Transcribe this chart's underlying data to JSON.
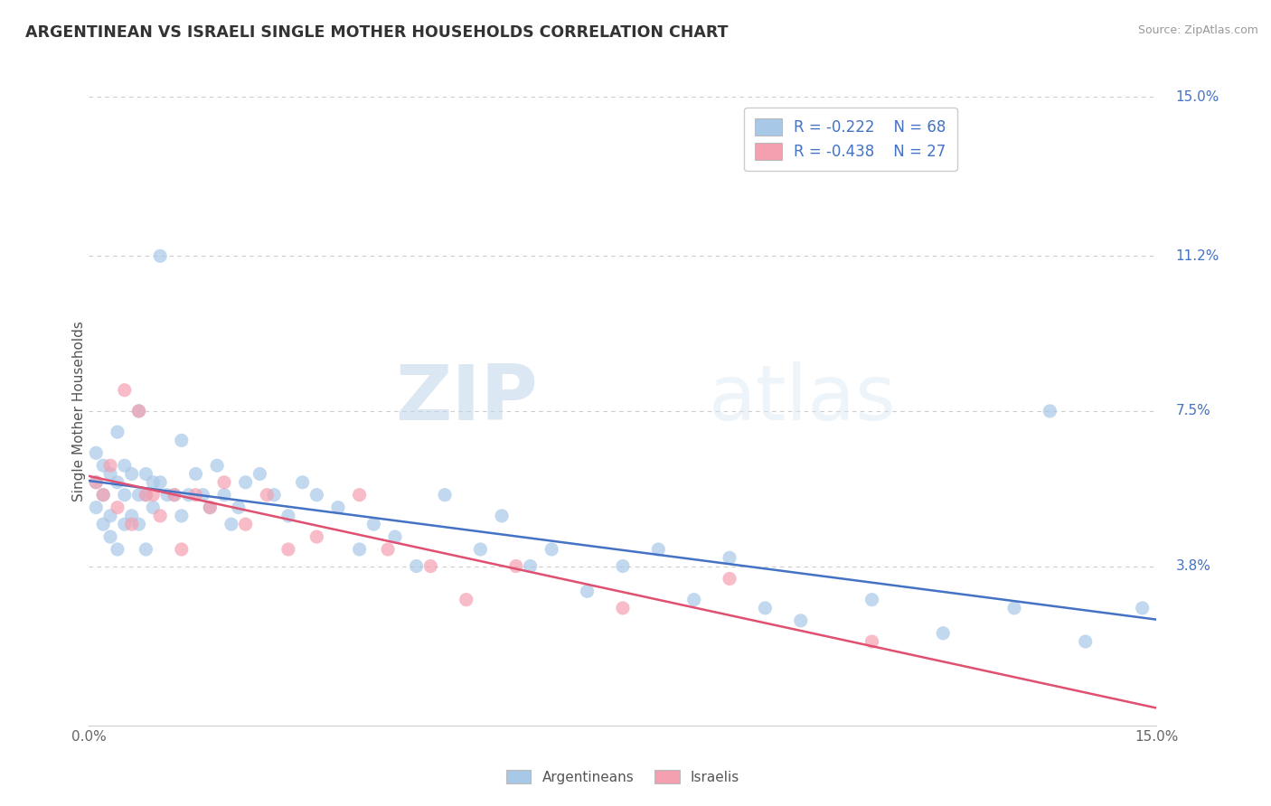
{
  "title": "ARGENTINEAN VS ISRAELI SINGLE MOTHER HOUSEHOLDS CORRELATION CHART",
  "source": "Source: ZipAtlas.com",
  "ylabel": "Single Mother Households",
  "xlim": [
    0.0,
    0.15
  ],
  "ylim": [
    0.0,
    0.15
  ],
  "ytick_positions": [
    0.15,
    0.112,
    0.075,
    0.038
  ],
  "ytick_labels": [
    "15.0%",
    "11.2%",
    "7.5%",
    "3.8%"
  ],
  "legend_r1": "R = -0.222",
  "legend_n1": "N = 68",
  "legend_r2": "R = -0.438",
  "legend_n2": "N = 27",
  "color_blue": "#a8c8e8",
  "color_pink": "#f4a0b0",
  "color_blue_line": "#4472c4",
  "color_pink_line": "#e05070",
  "color_label_blue": "#4472c4",
  "watermark_zip": "ZIP",
  "watermark_atlas": "atlas",
  "argentineans_x": [
    0.001,
    0.001,
    0.001,
    0.002,
    0.002,
    0.002,
    0.003,
    0.003,
    0.003,
    0.004,
    0.004,
    0.004,
    0.005,
    0.005,
    0.005,
    0.006,
    0.006,
    0.007,
    0.007,
    0.007,
    0.008,
    0.008,
    0.008,
    0.009,
    0.009,
    0.01,
    0.01,
    0.011,
    0.012,
    0.013,
    0.013,
    0.014,
    0.015,
    0.016,
    0.017,
    0.018,
    0.019,
    0.02,
    0.021,
    0.022,
    0.024,
    0.026,
    0.028,
    0.03,
    0.032,
    0.035,
    0.038,
    0.04,
    0.043,
    0.046,
    0.05,
    0.055,
    0.058,
    0.062,
    0.065,
    0.07,
    0.075,
    0.08,
    0.085,
    0.09,
    0.095,
    0.1,
    0.11,
    0.12,
    0.13,
    0.14,
    0.135,
    0.148
  ],
  "argentineans_y": [
    0.058,
    0.065,
    0.052,
    0.062,
    0.055,
    0.048,
    0.06,
    0.05,
    0.045,
    0.058,
    0.07,
    0.042,
    0.062,
    0.055,
    0.048,
    0.06,
    0.05,
    0.075,
    0.055,
    0.048,
    0.06,
    0.055,
    0.042,
    0.058,
    0.052,
    0.112,
    0.058,
    0.055,
    0.055,
    0.068,
    0.05,
    0.055,
    0.06,
    0.055,
    0.052,
    0.062,
    0.055,
    0.048,
    0.052,
    0.058,
    0.06,
    0.055,
    0.05,
    0.058,
    0.055,
    0.052,
    0.042,
    0.048,
    0.045,
    0.038,
    0.055,
    0.042,
    0.05,
    0.038,
    0.042,
    0.032,
    0.038,
    0.042,
    0.03,
    0.04,
    0.028,
    0.025,
    0.03,
    0.022,
    0.028,
    0.02,
    0.075,
    0.028
  ],
  "israelis_x": [
    0.001,
    0.002,
    0.003,
    0.004,
    0.005,
    0.006,
    0.007,
    0.008,
    0.009,
    0.01,
    0.012,
    0.013,
    0.015,
    0.017,
    0.019,
    0.022,
    0.025,
    0.028,
    0.032,
    0.038,
    0.042,
    0.048,
    0.053,
    0.06,
    0.075,
    0.09,
    0.11
  ],
  "israelis_y": [
    0.058,
    0.055,
    0.062,
    0.052,
    0.08,
    0.048,
    0.075,
    0.055,
    0.055,
    0.05,
    0.055,
    0.042,
    0.055,
    0.052,
    0.058,
    0.048,
    0.055,
    0.042,
    0.045,
    0.055,
    0.042,
    0.038,
    0.03,
    0.038,
    0.028,
    0.035,
    0.02
  ],
  "bg_color": "#ffffff",
  "spine_color": "#cccccc",
  "grid_color": "#cccccc"
}
